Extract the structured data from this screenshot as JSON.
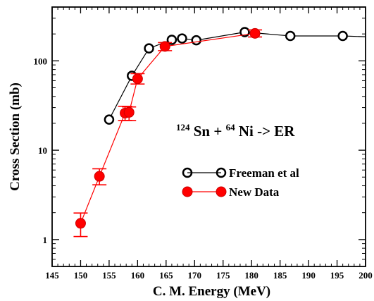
{
  "chart_data": {
    "type": "scatter",
    "xlabel": "C. M. Energy (MeV)",
    "ylabel": "Cross Section (mb)",
    "xlim": [
      145,
      200
    ],
    "ylim": [
      0.5,
      400
    ],
    "yscale": "log",
    "xticks": [
      145,
      150,
      155,
      160,
      165,
      170,
      175,
      180,
      185,
      190,
      195,
      200
    ],
    "yticks": [
      1,
      10,
      100
    ],
    "grid": false,
    "legend_position": "center-right",
    "annotation": {
      "a1": "124",
      "el1": "Sn + ",
      "a2": "64",
      "el2": "Ni -> ER"
    },
    "series": [
      {
        "name": "Freeman et al",
        "color": "#000000",
        "marker": "open-circle",
        "x": [
          155.0,
          159.0,
          162.0,
          166.0,
          167.8,
          170.3,
          178.8,
          186.8,
          196.0,
          201.0
        ],
        "y": [
          22,
          68,
          138,
          172,
          178,
          170,
          210,
          190,
          190,
          185
        ]
      },
      {
        "name": "New Data",
        "color": "#ff0000",
        "marker": "filled-circle",
        "x": [
          150.0,
          153.3,
          157.8,
          158.5,
          160.0,
          164.8,
          180.6
        ],
        "y": [
          1.52,
          5.1,
          26,
          26.5,
          63,
          145,
          203
        ],
        "y_low": [
          1.08,
          4.1,
          21.5,
          21.5,
          55,
          130,
          185
        ],
        "y_high": [
          1.98,
          6.2,
          31,
          30.5,
          72,
          160,
          222
        ]
      }
    ]
  }
}
